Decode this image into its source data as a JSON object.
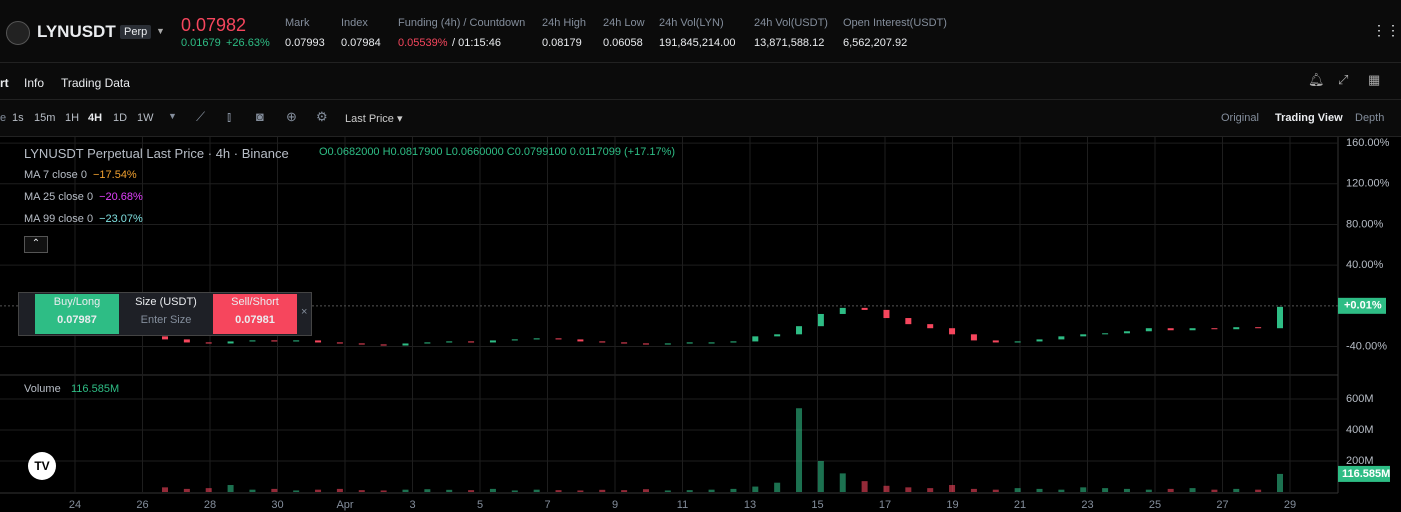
{
  "header": {
    "symbol": "LYNUSDT",
    "badge": "Perp",
    "price": "0.07982",
    "change": "0.01679",
    "change_pct": "+26.63%",
    "stats": [
      {
        "label": "Mark",
        "value": "0.07993"
      },
      {
        "label": "Index",
        "value": "0.07984"
      },
      {
        "label": "Funding (4h) / Countdown",
        "value": "0.05539%",
        "extra": "/ 01:15:46"
      },
      {
        "label": "24h High",
        "value": "0.08179"
      },
      {
        "label": "24h Low",
        "value": "0.06058"
      },
      {
        "label": "24h Vol(LYN)",
        "value": "191,845,214.00"
      },
      {
        "label": "24h Vol(USDT)",
        "value": "13,871,588.12"
      },
      {
        "label": "Open Interest(USDT)",
        "value": "6,562,207.92"
      }
    ]
  },
  "tabs": [
    "rt",
    "Info",
    "Trading Data"
  ],
  "toolbar": {
    "prefix": "e",
    "intervals": [
      "1s",
      "15m",
      "1H",
      "4H",
      "1D",
      "1W"
    ],
    "price_type": "Last Price",
    "views": [
      "Original",
      "Trading View",
      "Depth"
    ]
  },
  "legend": {
    "title": "LYNUSDT Perpetual Last Price · 4h · Binance",
    "ohlc": "O0.0682000 H0.0817900 L0.0660000 C0.0799100 0.0117099 (+17.17%)",
    "ma": [
      {
        "label": "MA 7 close 0",
        "value": "−17.54%",
        "color": "#f0a030"
      },
      {
        "label": "MA 25 close 0",
        "value": "−20.68%",
        "color": "#e040fb"
      },
      {
        "label": "MA 99 close 0",
        "value": "−23.07%",
        "color": "#7fe0e0"
      }
    ]
  },
  "order_panel": {
    "buy_label": "Buy/Long",
    "buy_price": "0.07987",
    "size_label": "Size (USDT)",
    "size_placeholder": "Enter Size",
    "sell_label": "Sell/Short",
    "sell_price": "0.07981"
  },
  "chart_data": {
    "type": "candlestick",
    "categories": [
      "24",
      "26",
      "28",
      "30",
      "Apr",
      "3",
      "5",
      "7",
      "9",
      "11",
      "13",
      "15",
      "17",
      "19",
      "21",
      "23",
      "25",
      "27",
      "29"
    ],
    "open": [
      -30,
      -33,
      -36,
      -37,
      -35,
      -34,
      -35,
      -34,
      -36,
      -37,
      -38,
      -39,
      -37,
      -36,
      -35,
      -36,
      -34,
      -33,
      -32,
      -33,
      -35,
      -36,
      -37,
      -38,
      -37,
      -36,
      -36,
      -35,
      -30,
      -28,
      -20,
      -8,
      -2,
      -4,
      -12,
      -18,
      -22,
      -28,
      -34,
      -36,
      -35,
      -33,
      -30,
      -28,
      -27,
      -25,
      -22,
      -24,
      -22,
      -23,
      -21,
      -22
    ],
    "close": [
      -33,
      -36,
      -37,
      -35,
      -34,
      -35,
      -34,
      -36,
      -37,
      -38,
      -39,
      -37,
      -36,
      -35,
      -36,
      -34,
      -33,
      -32,
      -33,
      -35,
      -36,
      -37,
      -38,
      -37,
      -36,
      -36,
      -35,
      -30,
      -28,
      -20,
      -8,
      -2,
      -4,
      -12,
      -18,
      -22,
      -28,
      -34,
      -36,
      -35,
      -33,
      -30,
      -28,
      -27,
      -25,
      -22,
      -24,
      -22,
      -23,
      -21,
      -22,
      -1
    ],
    "volume": [
      30,
      20,
      25,
      45,
      15,
      20,
      10,
      15,
      20,
      12,
      10,
      15,
      18,
      14,
      12,
      20,
      10,
      15,
      12,
      10,
      14,
      12,
      18,
      10,
      12,
      15,
      20,
      35,
      60,
      540,
      200,
      120,
      70,
      40,
      30,
      25,
      45,
      20,
      15,
      25,
      20,
      15,
      30,
      25,
      20,
      15,
      20,
      25,
      15,
      20,
      15,
      116.585
    ],
    "up_color": "#2ebd85",
    "down_color": "#f6465d",
    "ylim": [
      -68,
      166
    ],
    "yticks": [
      {
        "value": 160,
        "label": "160.00%"
      },
      {
        "value": 120,
        "label": "120.00%"
      },
      {
        "value": 80,
        "label": "80.00%"
      },
      {
        "value": 40,
        "label": "40.00%"
      },
      {
        "value": -40,
        "label": "-40.00%"
      }
    ],
    "current": {
      "value": 0.01,
      "label": "+0.01%"
    },
    "volume_title": "Volume",
    "volume_ylim": [
      0,
      735
    ],
    "volume_yticks": [
      {
        "value": 600,
        "label": "600M"
      },
      {
        "value": 400,
        "label": "400M"
      },
      {
        "value": 200,
        "label": "200M"
      }
    ],
    "current_volume": {
      "value": 116.585,
      "label": "116.585M"
    },
    "grid": true
  }
}
